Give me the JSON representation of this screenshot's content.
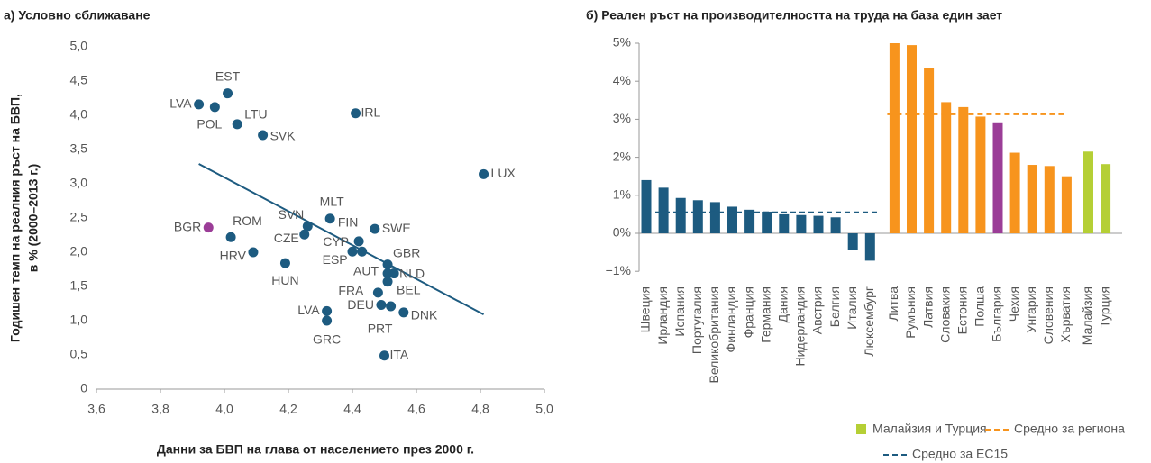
{
  "chart_data": [
    {
      "type": "scatter",
      "title": "а) Условно сближаване",
      "ylabel": [
        "Годишен темп на реалния ръст на БВП,",
        "в % (2000–2013 г.)"
      ],
      "xlabel": "Данни за БВП на глава от населението през 2000 г.",
      "labels": [
        "LVA",
        "EST",
        "POL",
        "LTU",
        "SVK",
        "IRL",
        "LUX",
        "BGR",
        "ROM",
        "HRV",
        "SVN",
        "CZE",
        "MLT",
        "FIN",
        "SWE",
        "CYP",
        "ESP",
        "HUN",
        "GBR",
        "AUT",
        "NLD",
        "BEL",
        "FRA",
        "DEU",
        "PRT",
        "DNK",
        "LVA",
        "GRC",
        "ITA"
      ],
      "x": [
        3.92,
        4.01,
        3.97,
        4.04,
        4.12,
        4.41,
        4.81,
        3.95,
        4.02,
        4.09,
        4.26,
        4.25,
        4.33,
        4.42,
        4.47,
        4.4,
        4.43,
        4.19,
        4.51,
        4.51,
        4.53,
        4.51,
        4.48,
        4.49,
        4.52,
        4.56,
        4.32,
        4.32,
        4.5
      ],
      "values": [
        4.16,
        4.32,
        4.12,
        3.87,
        3.71,
        4.03,
        3.14,
        2.36,
        2.22,
        2.0,
        2.38,
        2.26,
        2.49,
        2.16,
        2.34,
        2.01,
        2.01,
        1.84,
        1.82,
        1.69,
        1.69,
        1.57,
        1.41,
        1.23,
        1.21,
        1.12,
        1.14,
        1.0,
        0.49
      ],
      "point_colors": [
        "#1d5b80",
        "#1d5b80",
        "#1d5b80",
        "#1d5b80",
        "#1d5b80",
        "#1d5b80",
        "#1d5b80",
        "#9b3d97",
        "#1d5b80",
        "#1d5b80",
        "#1d5b80",
        "#1d5b80",
        "#1d5b80",
        "#1d5b80",
        "#1d5b80",
        "#1d5b80",
        "#1d5b80",
        "#1d5b80",
        "#1d5b80",
        "#1d5b80",
        "#1d5b80",
        "#1d5b80",
        "#1d5b80",
        "#1d5b80",
        "#1d5b80",
        "#1d5b80",
        "#1d5b80",
        "#1d5b80",
        "#1d5b80"
      ],
      "trendline": {
        "x": [
          3.92,
          4.81
        ],
        "y": [
          3.29,
          1.09
        ],
        "color": "#1d5b80"
      },
      "xlim": [
        3.6,
        5.0
      ],
      "xticks": [
        {
          "value": 3.6,
          "label": "3,6"
        },
        {
          "value": 3.8,
          "label": "3,8"
        },
        {
          "value": 4.0,
          "label": "4,0"
        },
        {
          "value": 4.2,
          "label": "4,2"
        },
        {
          "value": 4.4,
          "label": "4,4"
        },
        {
          "value": 4.6,
          "label": "4,6"
        },
        {
          "value": 4.8,
          "label": "4,8"
        },
        {
          "value": 5.0,
          "label": "5,0"
        }
      ],
      "ylim": [
        0,
        5
      ],
      "yticks": [
        0,
        {
          "value": 0.5,
          "label": "0,5"
        },
        {
          "value": 1,
          "label": "1,0"
        },
        {
          "value": 1.5,
          "label": "1,5"
        },
        {
          "value": 2,
          "label": "2,0"
        },
        {
          "value": 2.5,
          "label": "2,5"
        },
        {
          "value": 3,
          "label": "3,0"
        },
        {
          "value": 3.5,
          "label": "3,5"
        },
        {
          "value": 4,
          "label": "4,0"
        },
        {
          "value": 4.5,
          "label": "4,5"
        },
        {
          "value": 5,
          "label": "5,0"
        }
      ]
    },
    {
      "type": "bar",
      "title": "б) Реален ръст на производителността на труда на база един зает",
      "categories": [
        "Швеция",
        "Ирландия",
        "Испания",
        "Португалия",
        "Великобритания",
        "Финландия",
        "Франция",
        "Германия",
        "Дания",
        "Нидерландия",
        "Австрия",
        "Белгия",
        "Италия",
        "Люксембург",
        "Литва",
        "Румъния",
        "Латвия",
        "Словакия",
        "Естония",
        "Полша",
        "България",
        "Чехия",
        "Унгария",
        "Словения",
        "Хърватия",
        "Малайзия",
        "Турция"
      ],
      "values": [
        1.4,
        1.2,
        0.93,
        0.87,
        0.82,
        0.7,
        0.62,
        0.57,
        0.5,
        0.48,
        0.46,
        0.42,
        -0.45,
        -0.72,
        5.0,
        4.95,
        4.35,
        3.45,
        3.32,
        3.07,
        2.92,
        2.12,
        1.8,
        1.77,
        1.5,
        2.15,
        1.82
      ],
      "colors": [
        "#1d5b80",
        "#1d5b80",
        "#1d5b80",
        "#1d5b80",
        "#1d5b80",
        "#1d5b80",
        "#1d5b80",
        "#1d5b80",
        "#1d5b80",
        "#1d5b80",
        "#1d5b80",
        "#1d5b80",
        "#1d5b80",
        "#1d5b80",
        "#f7941d",
        "#f7941d",
        "#f7941d",
        "#f7941d",
        "#f7941d",
        "#f7941d",
        "#9b3d97",
        "#f7941d",
        "#f7941d",
        "#f7941d",
        "#f7941d",
        "#b5cf35",
        "#b5cf35"
      ],
      "averages": [
        {
          "name": "Средно за региона",
          "color": "#f7941d",
          "value": 3.13
        },
        {
          "name": "Средно за ЕС15",
          "color": "#1d5b80",
          "value": 0.55
        }
      ],
      "highlight": {
        "name": "Малайзия и Турция",
        "color": "#b5cf35"
      },
      "ylim": [
        -1,
        5
      ],
      "yticks": [
        {
          "value": -1,
          "label": "−1%"
        },
        {
          "value": 0,
          "label": "0%"
        },
        {
          "value": 1,
          "label": "1%"
        },
        {
          "value": 2,
          "label": "2%"
        },
        {
          "value": 3,
          "label": "3%"
        },
        {
          "value": 4,
          "label": "4%"
        },
        {
          "value": 5,
          "label": "5%"
        }
      ]
    }
  ]
}
